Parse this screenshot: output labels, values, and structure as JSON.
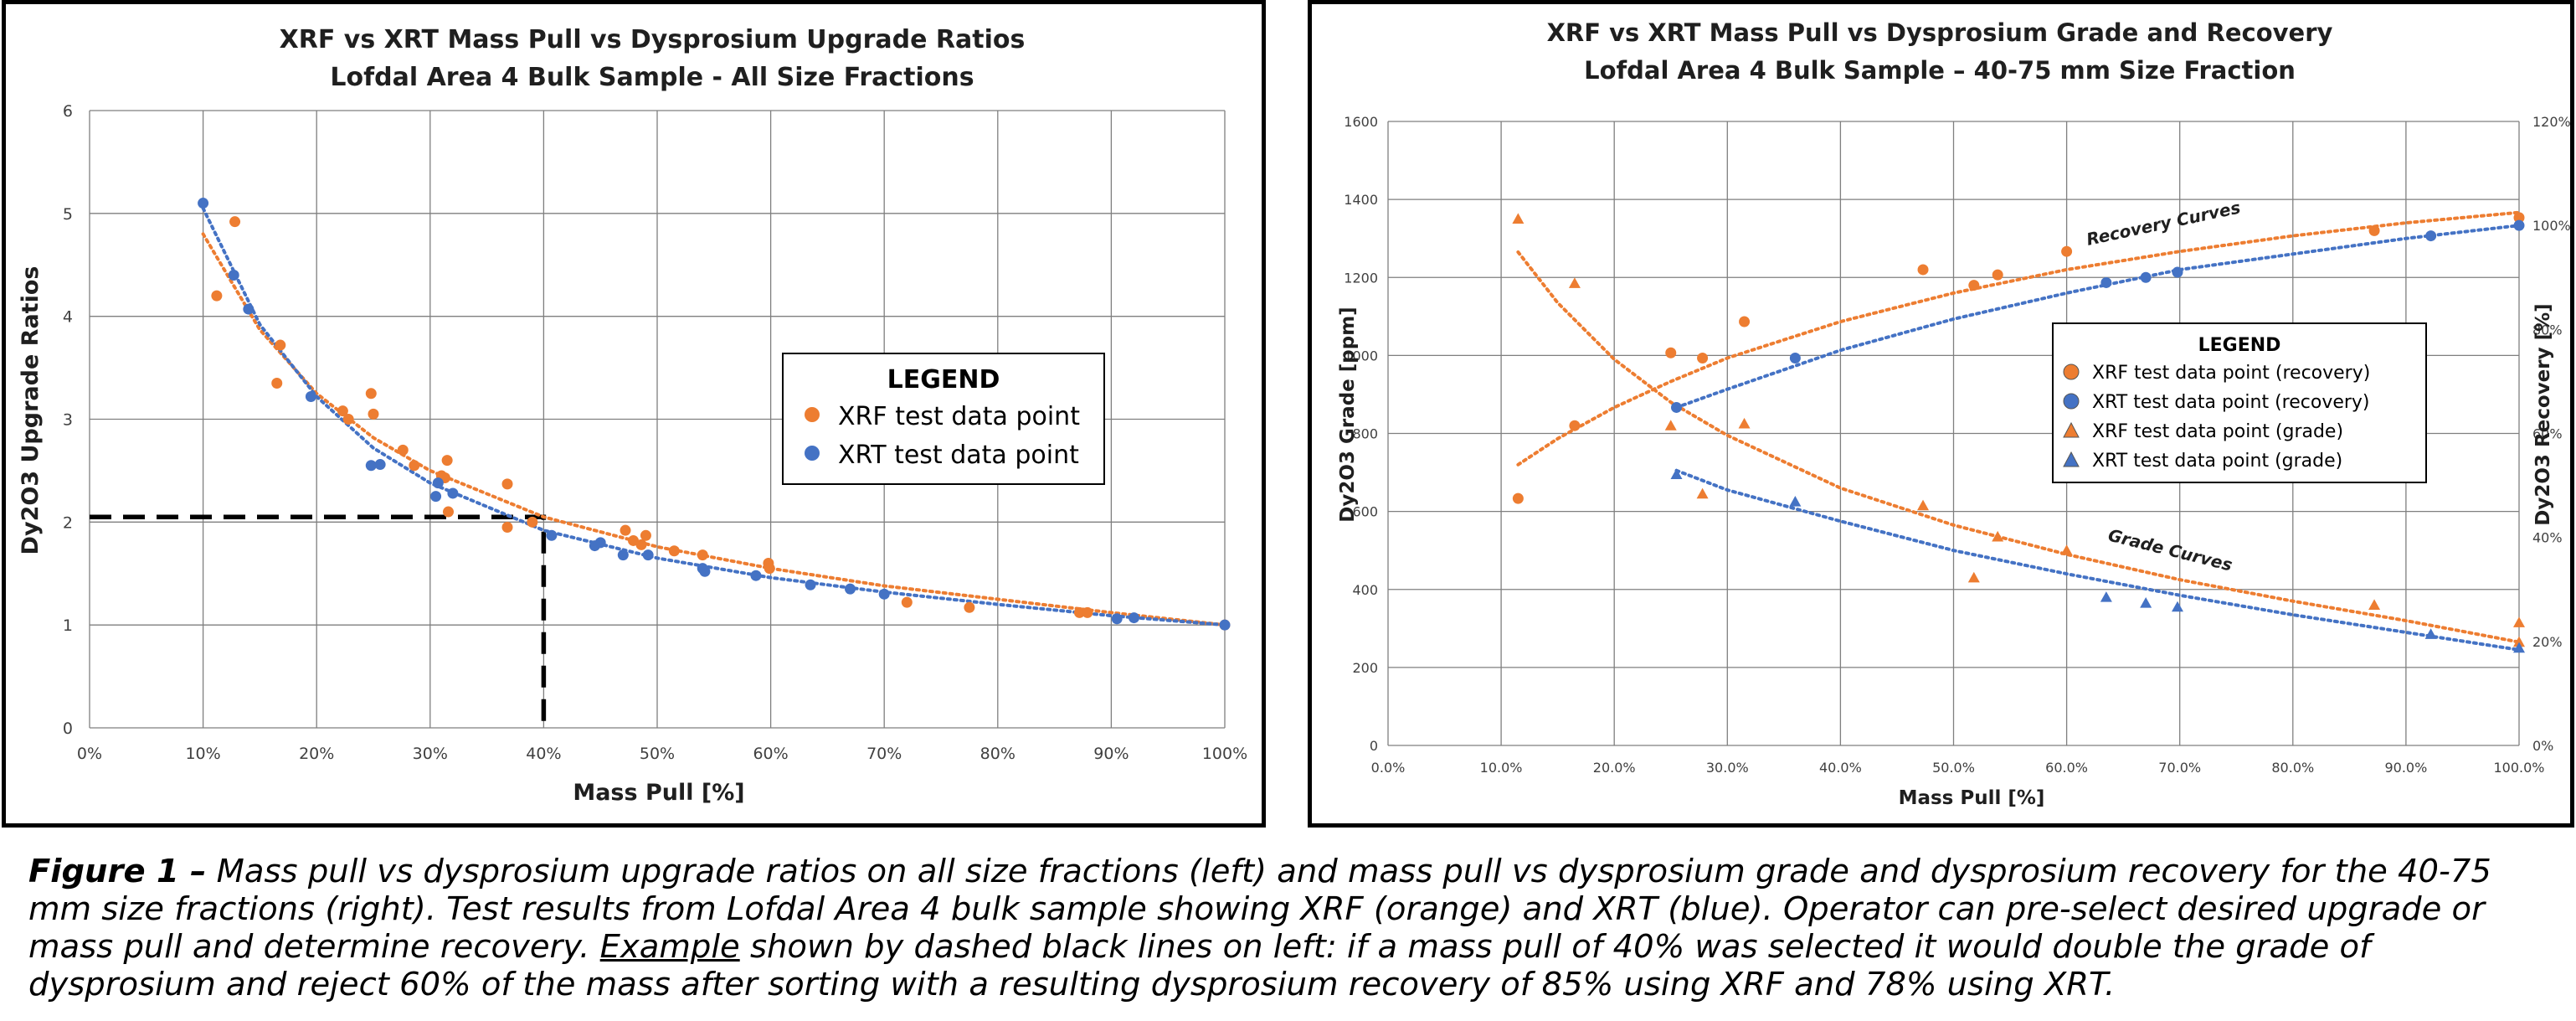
{
  "colors": {
    "xrf": "#ed7d31",
    "xrt": "#4472c4",
    "grid": "#7f7f7f",
    "dash": "#000000"
  },
  "caption": {
    "lead": "Figure 1 –",
    "part1": " Mass pull vs dysprosium upgrade ratios on all size fractions (left) and mass pull vs dysprosium grade and dysprosium recovery for the 40-75 mm size fractions (right). Test results from Lofdal Area 4 bulk sample showing XRF (orange) and XRT (blue). Operator can pre-select desired upgrade or mass pull and determine recovery. ",
    "underlined": "Example",
    "part2": " shown by dashed black lines on left: if a  mass pull of 40% was selected it would double the grade of dysprosium and reject 60% of the mass after sorting with a resulting dysprosium recovery of 85% using XRF and 78% using XRT."
  },
  "chart_data": [
    {
      "type": "scatter",
      "title": "XRF vs XRT Mass Pull vs Dysprosium Upgrade Ratios",
      "subtitle": "Lofdal Area 4 Bulk Sample - All Size Fractions",
      "xlabel": "Mass Pull [%]",
      "ylabel": "Dy2O3 Upgrade Ratios",
      "xlim": [
        0,
        100
      ],
      "ylim": [
        0,
        6
      ],
      "x_ticks": [
        "0%",
        "10%",
        "20%",
        "30%",
        "40%",
        "50%",
        "60%",
        "70%",
        "80%",
        "90%",
        "100%"
      ],
      "y_ticks": [
        "0",
        "1",
        "2",
        "3",
        "4",
        "5",
        "6"
      ],
      "grid": true,
      "legend": {
        "title": "LEGEND",
        "position": "center-right"
      },
      "series": [
        {
          "name": "XRF test data point",
          "color": "#ed7d31",
          "points": [
            [
              11.2,
              4.2
            ],
            [
              12.8,
              4.92
            ],
            [
              16.5,
              3.35
            ],
            [
              16.8,
              3.72
            ],
            [
              22.3,
              3.08
            ],
            [
              22.8,
              3.0
            ],
            [
              24.8,
              3.25
            ],
            [
              25.0,
              3.05
            ],
            [
              27.6,
              2.7
            ],
            [
              28.6,
              2.55
            ],
            [
              31.0,
              2.45
            ],
            [
              31.3,
              2.43
            ],
            [
              31.5,
              2.6
            ],
            [
              31.6,
              2.1
            ],
            [
              36.8,
              2.37
            ],
            [
              36.8,
              1.95
            ],
            [
              39.0,
              2.0
            ],
            [
              47.2,
              1.92
            ],
            [
              47.9,
              1.82
            ],
            [
              48.6,
              1.78
            ],
            [
              49.0,
              1.87
            ],
            [
              51.5,
              1.72
            ],
            [
              54.0,
              1.68
            ],
            [
              59.8,
              1.6
            ],
            [
              59.9,
              1.55
            ],
            [
              72.0,
              1.22
            ],
            [
              77.5,
              1.17
            ],
            [
              87.2,
              1.12
            ],
            [
              87.9,
              1.12
            ],
            [
              100,
              1.0
            ]
          ]
        },
        {
          "name": "XRT test data point",
          "color": "#4472c4",
          "points": [
            [
              10.0,
              5.1
            ],
            [
              12.7,
              4.4
            ],
            [
              14.0,
              4.07
            ],
            [
              19.5,
              3.22
            ],
            [
              24.8,
              2.55
            ],
            [
              25.6,
              2.56
            ],
            [
              30.5,
              2.25
            ],
            [
              30.7,
              2.38
            ],
            [
              32.0,
              2.28
            ],
            [
              40.7,
              1.87
            ],
            [
              44.5,
              1.77
            ],
            [
              45.0,
              1.8
            ],
            [
              47.0,
              1.68
            ],
            [
              49.2,
              1.68
            ],
            [
              54.0,
              1.55
            ],
            [
              54.2,
              1.52
            ],
            [
              58.7,
              1.48
            ],
            [
              63.5,
              1.39
            ],
            [
              67.0,
              1.35
            ],
            [
              70.0,
              1.3
            ],
            [
              90.5,
              1.06
            ],
            [
              92.0,
              1.07
            ],
            [
              100,
              1.0
            ]
          ]
        }
      ],
      "trendlines": [
        {
          "series": "XRF test data point",
          "style": "dotted",
          "color": "#ed7d31",
          "points": [
            [
              10,
              4.8
            ],
            [
              15,
              3.87
            ],
            [
              20,
              3.25
            ],
            [
              25,
              2.82
            ],
            [
              30,
              2.5
            ],
            [
              40,
              2.05
            ],
            [
              50,
              1.76
            ],
            [
              60,
              1.55
            ],
            [
              70,
              1.38
            ],
            [
              80,
              1.25
            ],
            [
              90,
              1.12
            ],
            [
              100,
              1.0
            ]
          ]
        },
        {
          "series": "XRT test data point",
          "style": "dotted",
          "color": "#4472c4",
          "points": [
            [
              10,
              5.05
            ],
            [
              15,
              3.92
            ],
            [
              20,
              3.22
            ],
            [
              25,
              2.72
            ],
            [
              30,
              2.38
            ],
            [
              40,
              1.92
            ],
            [
              50,
              1.65
            ],
            [
              60,
              1.46
            ],
            [
              70,
              1.32
            ],
            [
              80,
              1.2
            ],
            [
              90,
              1.09
            ],
            [
              100,
              1.0
            ]
          ]
        }
      ],
      "reference_lines": {
        "style": "dashed",
        "color": "#000000",
        "points": [
          [
            0,
            2.05
          ],
          [
            40,
            2.05
          ],
          [
            40,
            0
          ]
        ]
      }
    },
    {
      "type": "scatter",
      "title": "XRF vs XRT Mass Pull vs Dysprosium Grade and Recovery",
      "subtitle": "Lofdal Area 4 Bulk Sample – 40-75 mm Size Fraction",
      "xlabel": "Mass Pull [%]",
      "ylabel": "Dy2O3 Grade [ppm]",
      "y2label": "Dy2O3 Recovery [%]",
      "xlim": [
        0,
        100
      ],
      "ylim": [
        0,
        1600
      ],
      "y2lim": [
        0,
        120
      ],
      "x_ticks": [
        "0.0%",
        "10.0%",
        "20.0%",
        "30.0%",
        "40.0%",
        "50.0%",
        "60.0%",
        "70.0%",
        "80.0%",
        "90.0%",
        "100.0%"
      ],
      "y_ticks": [
        "0",
        "200",
        "400",
        "600",
        "800",
        "1000",
        "1200",
        "1400",
        "1600"
      ],
      "y2_ticks": [
        "0%",
        "20%",
        "40%",
        "60%",
        "80%",
        "100%",
        "120%"
      ],
      "grid": true,
      "legend": {
        "title": "LEGEND",
        "position": "center-right"
      },
      "annotations": [
        "Recovery Curves",
        "Grade Curves"
      ],
      "series": [
        {
          "name": "XRF test data point (recovery)",
          "marker": "circle",
          "color": "#ed7d31",
          "axis": "y2",
          "points": [
            [
              11.5,
              47.5
            ],
            [
              16.5,
              61.5
            ],
            [
              25.0,
              75.5
            ],
            [
              27.8,
              74.5
            ],
            [
              31.5,
              81.5
            ],
            [
              47.3,
              91.5
            ],
            [
              51.8,
              88.5
            ],
            [
              53.9,
              90.5
            ],
            [
              60.0,
              95.0
            ],
            [
              87.2,
              99.0
            ],
            [
              100,
              101.5
            ]
          ]
        },
        {
          "name": "XRT test data point (recovery)",
          "marker": "circle",
          "color": "#4472c4",
          "axis": "y2",
          "points": [
            [
              25.5,
              65.0
            ],
            [
              36.0,
              74.5
            ],
            [
              63.5,
              89.0
            ],
            [
              67.0,
              90.0
            ],
            [
              69.8,
              91.0
            ],
            [
              92.2,
              98.0
            ],
            [
              100,
              100.0
            ]
          ]
        },
        {
          "name": "XRF test data point (grade)",
          "marker": "triangle",
          "color": "#ed7d31",
          "axis": "y",
          "points": [
            [
              11.5,
              1350
            ],
            [
              16.5,
              1185
            ],
            [
              25.0,
              820
            ],
            [
              27.8,
              645
            ],
            [
              31.5,
              825
            ],
            [
              47.3,
              615
            ],
            [
              51.8,
              430
            ],
            [
              53.9,
              535
            ],
            [
              60.0,
              500
            ],
            [
              87.2,
              360
            ],
            [
              100,
              315
            ],
            [
              100,
              265
            ]
          ]
        },
        {
          "name": "XRT test data point (grade)",
          "marker": "triangle",
          "color": "#4472c4",
          "axis": "y",
          "points": [
            [
              25.5,
              695
            ],
            [
              36.0,
              625
            ],
            [
              63.5,
              380
            ],
            [
              67.0,
              365
            ],
            [
              69.8,
              355
            ],
            [
              92.2,
              285
            ],
            [
              100,
              250
            ]
          ]
        }
      ],
      "trendlines": [
        {
          "series": "XRF test data point (recovery)",
          "axis": "y2",
          "style": "dotted",
          "color": "#ed7d31",
          "points": [
            [
              11.5,
              54
            ],
            [
              15,
              59
            ],
            [
              20,
              65
            ],
            [
              25,
              70
            ],
            [
              30,
              74.5
            ],
            [
              40,
              81.5
            ],
            [
              50,
              87
            ],
            [
              60,
              91.5
            ],
            [
              70,
              95
            ],
            [
              80,
              98
            ],
            [
              90,
              100.5
            ],
            [
              100,
              102.5
            ]
          ]
        },
        {
          "series": "XRT test data point (recovery)",
          "axis": "y2",
          "style": "dotted",
          "color": "#4472c4",
          "points": [
            [
              25.5,
              65
            ],
            [
              30,
              68.5
            ],
            [
              40,
              76
            ],
            [
              50,
              82
            ],
            [
              60,
              87
            ],
            [
              70,
              91.5
            ],
            [
              80,
              94.5
            ],
            [
              90,
              97.5
            ],
            [
              100,
              100
            ]
          ]
        },
        {
          "series": "XRF test data point (grade)",
          "axis": "y",
          "style": "dotted",
          "color": "#ed7d31",
          "points": [
            [
              11.5,
              1265
            ],
            [
              15,
              1135
            ],
            [
              20,
              990
            ],
            [
              25,
              880
            ],
            [
              30,
              795
            ],
            [
              40,
              660
            ],
            [
              50,
              565
            ],
            [
              60,
              490
            ],
            [
              70,
              425
            ],
            [
              80,
              370
            ],
            [
              90,
              320
            ],
            [
              100,
              265
            ]
          ]
        },
        {
          "series": "XRT test data point (grade)",
          "axis": "y",
          "style": "dotted",
          "color": "#4472c4",
          "points": [
            [
              25.5,
              705
            ],
            [
              30,
              655
            ],
            [
              40,
              575
            ],
            [
              50,
              500
            ],
            [
              60,
              440
            ],
            [
              70,
              385
            ],
            [
              80,
              335
            ],
            [
              90,
              290
            ],
            [
              100,
              245
            ]
          ]
        }
      ]
    }
  ]
}
